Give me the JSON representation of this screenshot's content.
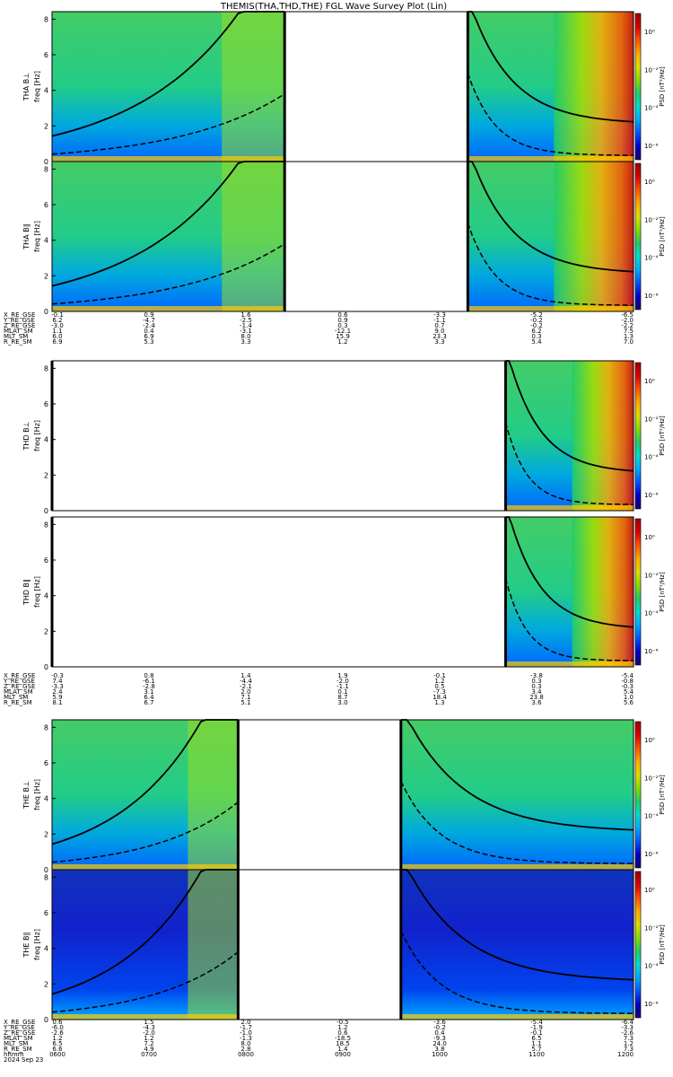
{
  "title": "THEMIS(THA,THD,THE) FGL Wave Survey Plot (Lin)",
  "colors": {
    "cbar": [
      "#1a0066",
      "#0000cc",
      "#0055ff",
      "#00aaff",
      "#00ddcc",
      "#22cc66",
      "#88dd00",
      "#dddd00",
      "#ffaa00",
      "#ff5500",
      "#dd0000",
      "#990000"
    ]
  },
  "colorbar": {
    "label": "PSD [nT²/Hz]",
    "ticks": [
      "10⁰",
      "10⁻²",
      "10⁻⁴",
      "10⁻⁶"
    ]
  },
  "ticks_y": [
    "0",
    "2",
    "4",
    "6",
    "8"
  ],
  "chart_data": {
    "type": "heatmap",
    "x_range": [
      "0600",
      "1200"
    ],
    "y_range": [
      0,
      8
    ],
    "panels": [
      {
        "ylabel_top": "THA B⊥",
        "ylabel_bottom": "freq [Hz]",
        "gap": [
          0.4,
          0.715
        ],
        "fill": "mixed"
      },
      {
        "ylabel_top": "THA B∥",
        "ylabel_bottom": "freq [Hz]",
        "gap": [
          0.4,
          0.715
        ],
        "fill": "mixed"
      },
      {
        "ylabel_top": "THD B⊥",
        "ylabel_bottom": "freq [Hz]",
        "gap": [
          0.0,
          0.78
        ],
        "fill": "mixed"
      },
      {
        "ylabel_top": "THD B∥",
        "ylabel_bottom": "freq [Hz]",
        "gap": [
          0.0,
          0.78
        ],
        "fill": "mixed"
      },
      {
        "ylabel_top": "THE B⊥",
        "ylabel_bottom": "freq [Hz]",
        "gap": [
          0.32,
          0.6
        ],
        "fill": "green"
      },
      {
        "ylabel_top": "THE B∥",
        "ylabel_bottom": "freq [Hz]",
        "gap": [
          0.32,
          0.6
        ],
        "fill": "blue"
      }
    ],
    "ephemeris": [
      {
        "labels": [
          "X_RE_GSE",
          "Y_RE_GSE",
          "Z_RE_GSE",
          "MLAT_SM",
          "MLT_SM",
          "R_RE_SM"
        ],
        "rows": [
          [
            "-0.1",
            "0.9",
            "1.6",
            "0.6",
            "-3.3",
            "-5.2",
            "-6.5"
          ],
          [
            "6.2",
            "-4.7",
            "-2.5",
            "0.9",
            "-1.1",
            "-0.2",
            "-2.0"
          ],
          [
            "-3.0",
            "-2.4",
            "-1.4",
            "0.3",
            "0.7",
            "-0.2",
            "-2.2"
          ],
          [
            "1.1",
            "0.4",
            "-3.1",
            "-12.1",
            "9.0",
            "6.2",
            "7.5"
          ],
          [
            "6.0",
            "6.9",
            "8.0",
            "15.9",
            "23.3",
            "0.3",
            "1.3"
          ],
          [
            "6.9",
            "5.3",
            "3.3",
            "1.2",
            "3.3",
            "5.4",
            "7.0"
          ]
        ]
      },
      {
        "labels": [
          "X_RE_GSE",
          "Y_RE_GSE",
          "Z_RE_GSE",
          "MLAT_SM",
          "MLT_SM",
          "R_RE_SM"
        ],
        "rows": [
          [
            "-0.3",
            "0.8",
            "1.4",
            "1.9",
            "-0.1",
            "-3.8",
            "-5.4"
          ],
          [
            "7.4",
            "-6.1",
            "-4.4",
            "-2.0",
            "1.2",
            "0.3",
            "-0.8"
          ],
          [
            "-3.3",
            "-2.8",
            "-2.1",
            "-1.1",
            "0.5",
            "0.3",
            "-0.3"
          ],
          [
            "2.4",
            "3.1",
            "2.0",
            "0.1",
            "-7.3",
            "3.4",
            "5.4"
          ],
          [
            "5.9",
            "6.4",
            "7.1",
            "8.7",
            "18.4",
            "23.8",
            "1.0"
          ],
          [
            "8.1",
            "6.7",
            "5.1",
            "3.0",
            "1.3",
            "3.6",
            "5.6"
          ]
        ]
      },
      {
        "labels": [
          "X_RE_GSE",
          "Y_RE_GSE",
          "Z_RE_GSE",
          "MLAT_SM",
          "MLT_SM",
          "R_RE_SM",
          "hhmm",
          "2024 Sep 23"
        ],
        "rows": [
          [
            "0.6",
            "1.5",
            "2.0",
            "-0.5",
            "-3.6",
            "-5.4",
            "-6.4"
          ],
          [
            "-6.0",
            "-4.3",
            "-1.7",
            "1.2",
            "-0.2",
            "-1.9",
            "-3.3"
          ],
          [
            "-2.6",
            "-2.0",
            "-1.0",
            "0.6",
            "0.4",
            "-0.1",
            "-2.6"
          ],
          [
            "1.2",
            "1.2",
            "-1.3",
            "-18.5",
            "-9.3",
            "6.5",
            "7.3"
          ],
          [
            "6.5",
            "7.2",
            "8.0",
            "18.5",
            "24.0",
            "1.1",
            "1.2"
          ],
          [
            "6.6",
            "4.9",
            "2.8",
            "1.4",
            "3.8",
            "5.7",
            "7.3"
          ],
          [
            "0600",
            "0700",
            "0800",
            "0900",
            "1000",
            "1100",
            "1200"
          ]
        ]
      }
    ]
  }
}
